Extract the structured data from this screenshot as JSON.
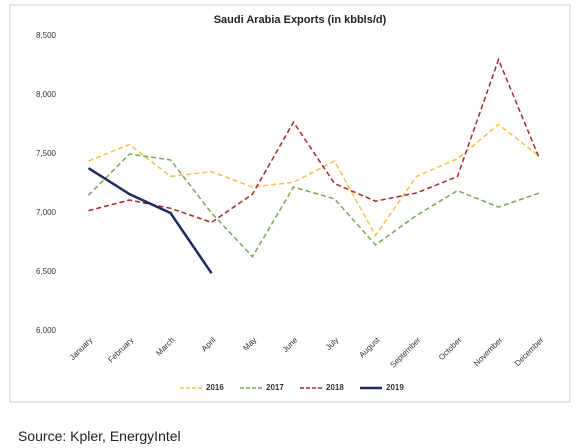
{
  "chart_data": {
    "type": "line",
    "title": "Saudi Arabia Exports (in kbbls/d)",
    "categories": [
      "January",
      "February",
      "March",
      "April",
      "May",
      "June",
      "July",
      "August",
      "September",
      "October",
      "November",
      "December"
    ],
    "series": [
      {
        "name": "2016",
        "color": "#f2c14e",
        "dash": true,
        "values": [
          7440,
          7580,
          7310,
          7350,
          7220,
          7260,
          7440,
          6810,
          7310,
          7460,
          7750,
          7480
        ]
      },
      {
        "name": "2017",
        "color": "#7aa556",
        "dash": true,
        "values": [
          7150,
          7500,
          7450,
          7000,
          6630,
          7220,
          7120,
          6730,
          6980,
          7190,
          7050,
          7170
        ]
      },
      {
        "name": "2018",
        "color": "#a52a2a",
        "dash": true,
        "values": [
          7020,
          7110,
          7040,
          6920,
          7160,
          7770,
          7250,
          7100,
          7170,
          7310,
          8300,
          7460
        ]
      },
      {
        "name": "2019",
        "color": "#1f2a5c",
        "dash": false,
        "values": [
          7380,
          7160,
          7000,
          6490,
          null,
          null,
          null,
          null,
          null,
          null,
          null,
          null
        ]
      }
    ],
    "ylim": [
      6000,
      8500
    ],
    "yticks": [
      {
        "value": 6000,
        "label": "6,000"
      },
      {
        "value": 6500,
        "label": "6,500"
      },
      {
        "value": 7000,
        "label": "7,000"
      },
      {
        "value": 7500,
        "label": "7,500"
      },
      {
        "value": 8000,
        "label": "8,000"
      },
      {
        "value": 8500,
        "label": "8,500"
      }
    ],
    "grid": false,
    "legend": "bottom"
  },
  "source": "Source: Kpler, EnergyIntel"
}
